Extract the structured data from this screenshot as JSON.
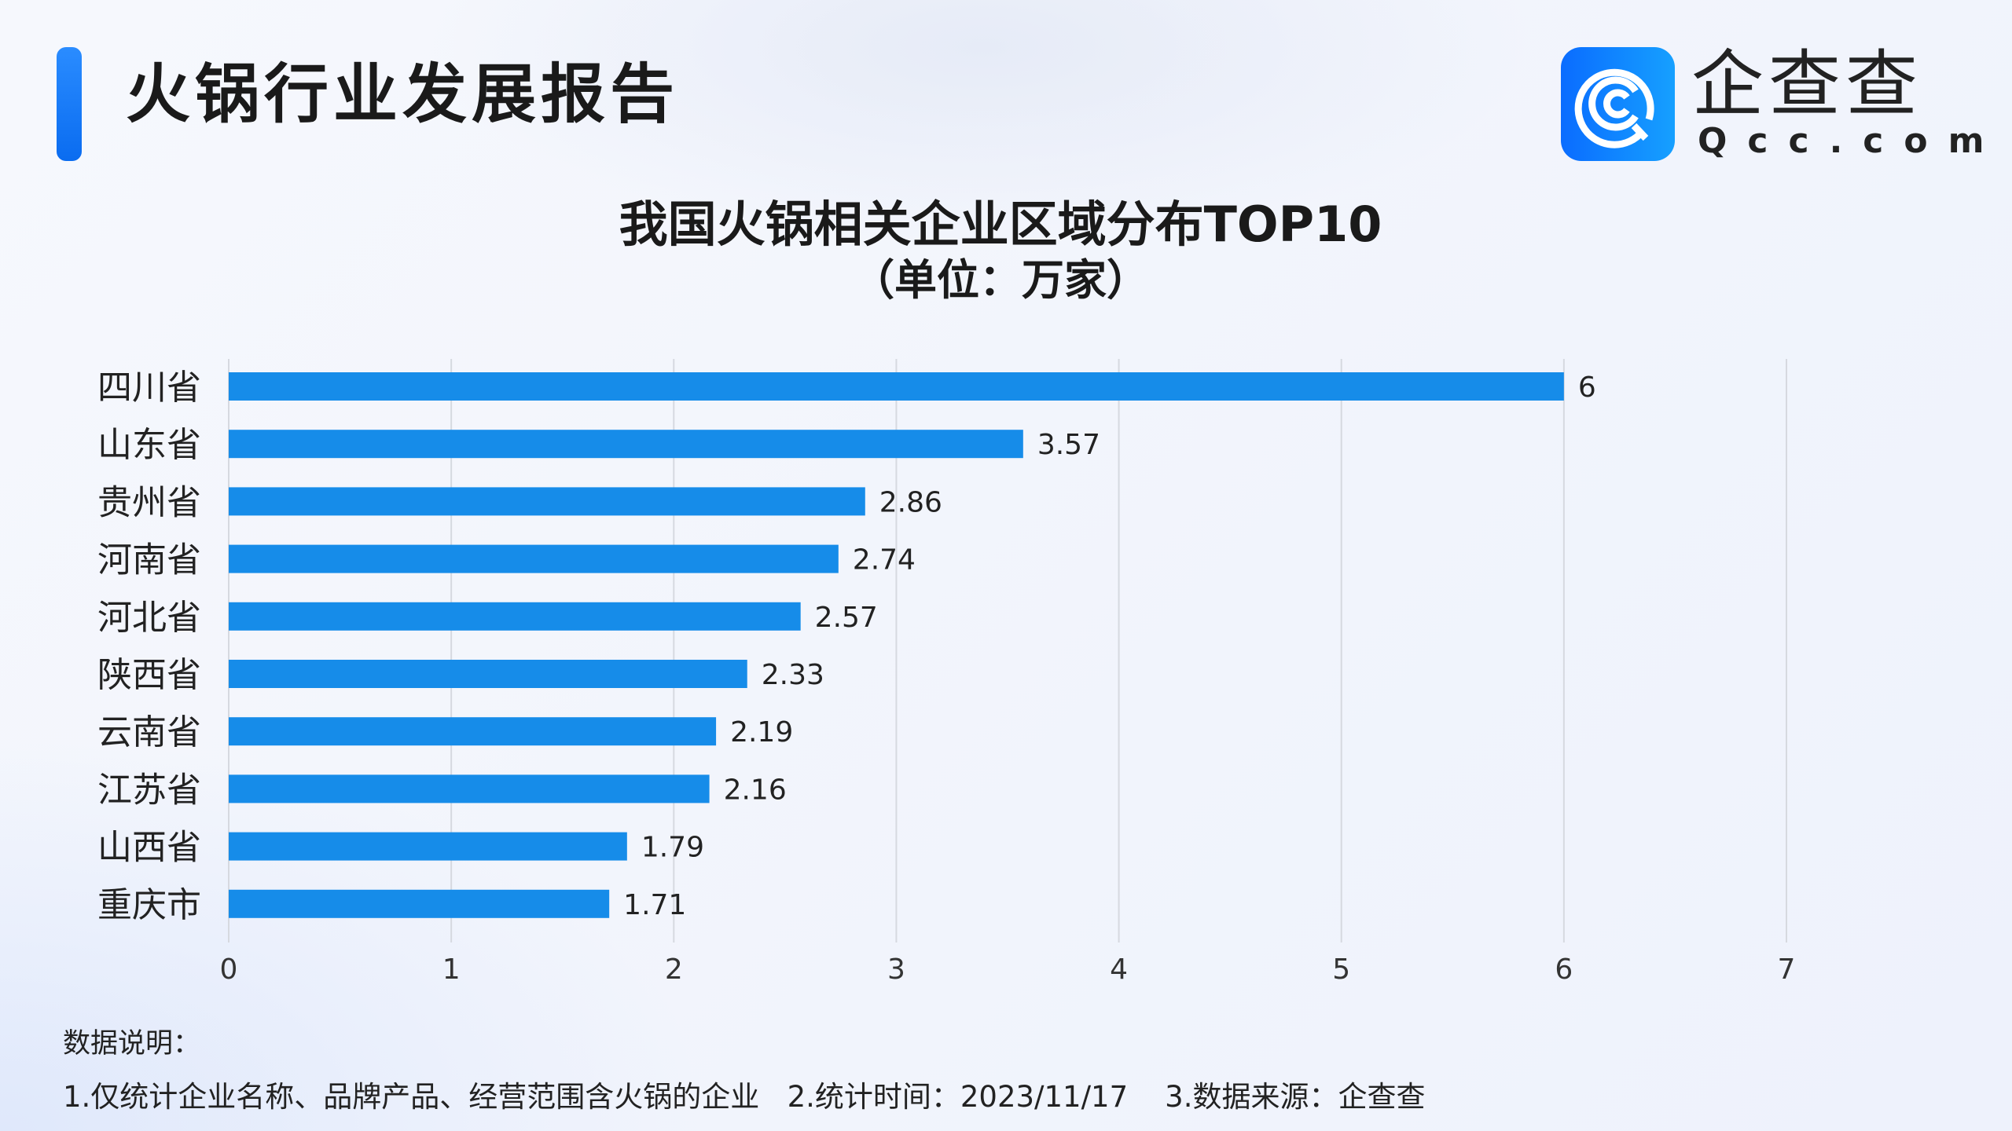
{
  "header": {
    "title": "火锅行业发展报告"
  },
  "logo": {
    "name_cn": "企查查",
    "name_en": "Qcc.com"
  },
  "chart_data": {
    "type": "bar",
    "orientation": "horizontal",
    "title": "我国火锅相关企业区域分布TOP10",
    "subtitle": "（单位：万家）",
    "categories": [
      "四川省",
      "山东省",
      "贵州省",
      "河南省",
      "河北省",
      "陕西省",
      "云南省",
      "江苏省",
      "山西省",
      "重庆市"
    ],
    "values": [
      6,
      3.57,
      2.86,
      2.74,
      2.57,
      2.33,
      2.19,
      2.16,
      1.79,
      1.71
    ],
    "value_labels": [
      "6",
      "3.57",
      "2.86",
      "2.74",
      "2.57",
      "2.33",
      "2.19",
      "2.16",
      "1.79",
      "1.71"
    ],
    "xticks": [
      "0",
      "1",
      "2",
      "3",
      "4",
      "5",
      "6",
      "7"
    ],
    "xlim": [
      0,
      7
    ],
    "grid": true,
    "bar_color": "#168ce9"
  },
  "notes": {
    "heading": "数据说明：",
    "text": "1.仅统计企业名称、品牌产品、经营范围含火锅的企业   2.统计时间：2023/11/17    3.数据来源：企查查"
  }
}
